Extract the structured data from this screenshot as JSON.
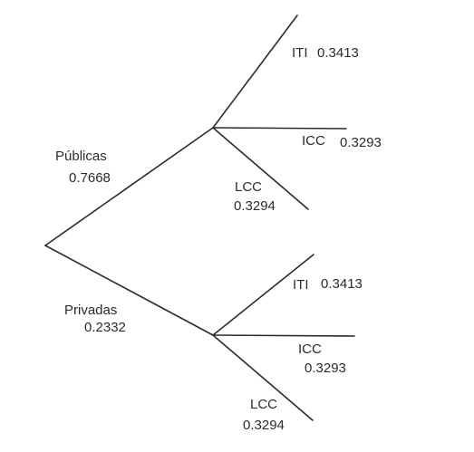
{
  "tree": {
    "top": {
      "name": "Públicas",
      "value": "0.7668",
      "children": [
        {
          "name": "ITI",
          "value": "0.3413"
        },
        {
          "name": "ICC",
          "value": "0.3293"
        },
        {
          "name": "LCC",
          "value": "0.3294"
        }
      ]
    },
    "bottom": {
      "name": "Privadas",
      "value": "0.2332",
      "children": [
        {
          "name": "ITI",
          "value": "0.3413"
        },
        {
          "name": "ICC",
          "value": "0.3293"
        },
        {
          "name": "LCC",
          "value": "0.3294"
        }
      ]
    }
  }
}
